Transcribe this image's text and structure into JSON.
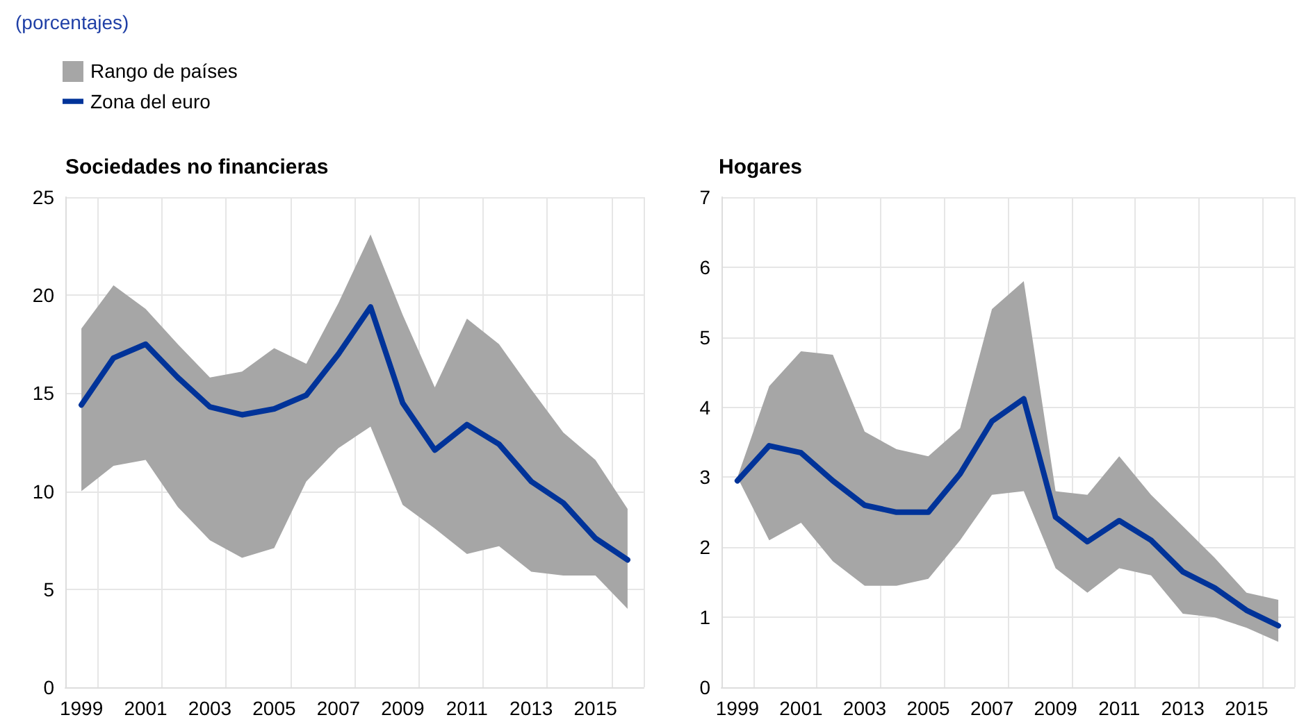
{
  "chart_data": [
    {
      "type": "line",
      "title": "Sociedades no financieras",
      "subtitle": "(porcentajes)",
      "annotations": [
        "Rango de países"
      ],
      "categories": [
        "1999",
        null,
        "2001",
        null,
        "2003",
        null,
        "2005",
        null,
        "2007",
        null,
        "2009",
        null,
        "2011",
        null,
        "2013",
        null,
        "2015",
        null
      ],
      "series": [
        {
          "name": "Zona del euro",
          "type": "line",
          "color": "#003399",
          "values": [
            14.4,
            16.8,
            17.5,
            15.8,
            14.3,
            13.9,
            14.2,
            14.9,
            17.0,
            19.4,
            14.5,
            12.1,
            13.4,
            12.4,
            10.5,
            9.4,
            7.6,
            6.5
          ],
          "lower": [
            10.0,
            11.3,
            11.6,
            9.2,
            7.5,
            6.6,
            7.1,
            10.5,
            12.2,
            13.3,
            9.3,
            8.1,
            6.8,
            7.2,
            5.9,
            5.7,
            5.7,
            4.0
          ],
          "upper": [
            18.3,
            20.5,
            19.3,
            17.5,
            15.8,
            16.1,
            17.3,
            16.5,
            19.6,
            23.1,
            19.0,
            15.3,
            18.8,
            17.5,
            15.2,
            13.0,
            11.6,
            9.1
          ]
        }
      ],
      "ylim": [
        0,
        25
      ],
      "yticks": [
        0,
        5,
        10,
        15,
        20,
        25
      ],
      "grid": true,
      "legend": "top left",
      "marker": "none",
      "line_style": "solid"
    },
    {
      "type": "line",
      "title": "Hogares",
      "categories": [
        "1999",
        null,
        "2001",
        null,
        "2003",
        null,
        "2005",
        null,
        "2007",
        null,
        "2009",
        null,
        "2011",
        null,
        "2013",
        null,
        "2015",
        null
      ],
      "series": [
        {
          "type": "line",
          "color": "#003399",
          "values": [
            2.95,
            3.45,
            3.35,
            2.95,
            2.6,
            2.5,
            2.5,
            3.05,
            3.8,
            4.12,
            2.43,
            2.08,
            2.38,
            2.1,
            1.65,
            1.42,
            1.1,
            0.88
          ],
          "lower": [
            3.0,
            2.1,
            2.35,
            1.8,
            1.45,
            1.45,
            1.55,
            2.1,
            2.75,
            2.8,
            1.7,
            1.35,
            1.7,
            1.6,
            1.05,
            1.0,
            0.85,
            0.65
          ],
          "upper": [
            3.0,
            4.3,
            4.8,
            4.75,
            3.65,
            3.4,
            3.3,
            3.7,
            5.4,
            5.8,
            2.8,
            2.75,
            3.3,
            2.75,
            2.3,
            1.85,
            1.35,
            1.25
          ]
        }
      ],
      "ylim": [
        0,
        7
      ],
      "yticks": [
        0,
        1,
        2,
        3,
        4,
        5,
        6,
        7
      ],
      "grid": true,
      "legend": false,
      "marker": "none",
      "line_style": "solid"
    }
  ]
}
